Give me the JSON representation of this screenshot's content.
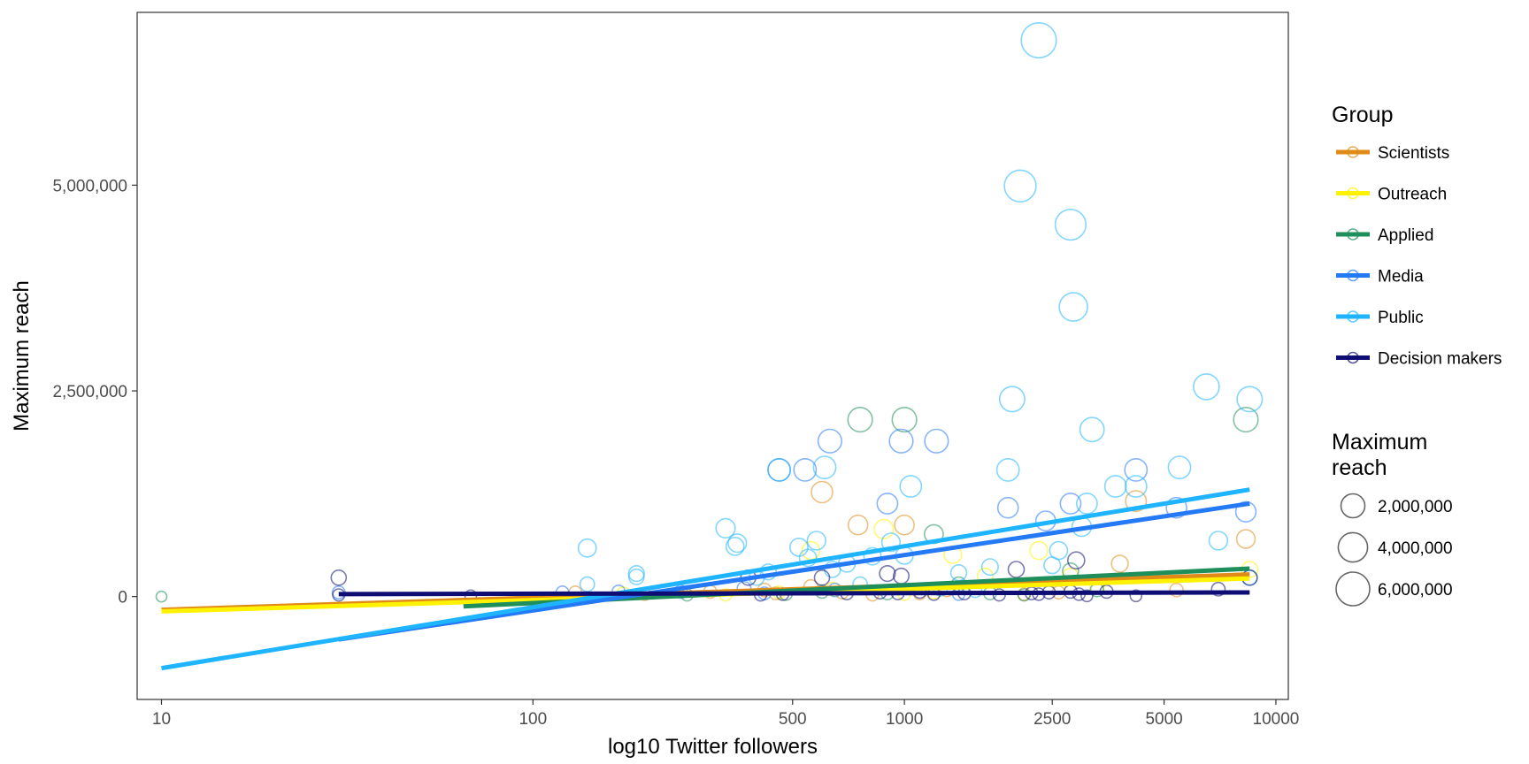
{
  "chart_data": {
    "type": "scatter",
    "xlabel": "log10 Twitter followers",
    "ylabel": "Maximum reach",
    "x_scale": "log10",
    "xlim": [
      8.6,
      10800
    ],
    "ylim": [
      -1250000,
      7100000
    ],
    "x_ticks": [
      {
        "value": 10,
        "label": "10"
      },
      {
        "value": 100,
        "label": "100"
      },
      {
        "value": 500,
        "label": "500"
      },
      {
        "value": 1000,
        "label": "1000"
      },
      {
        "value": 2500,
        "label": "2500"
      },
      {
        "value": 5000,
        "label": "5000"
      },
      {
        "value": 10000,
        "label": "10000"
      }
    ],
    "y_ticks": [
      {
        "value": 0,
        "label": "0"
      },
      {
        "value": 2500000,
        "label": "2,500,000"
      },
      {
        "value": 5000000,
        "label": "5,000,000"
      }
    ],
    "grid": false,
    "legend_placement": "right",
    "color_legend": {
      "title": "Group",
      "items": [
        {
          "label": "Scientists",
          "color": "#E08A17"
        },
        {
          "label": "Outreach",
          "color": "#FFF200"
        },
        {
          "label": "Applied",
          "color": "#1E8E5A"
        },
        {
          "label": "Media",
          "color": "#2479F5"
        },
        {
          "label": "Public",
          "color": "#1EB4FF"
        },
        {
          "label": "Decision makers",
          "color": "#0D0D73"
        }
      ]
    },
    "size_legend": {
      "title_lines": [
        "Maximum",
        "reach"
      ],
      "items": [
        {
          "value": 2000000,
          "label": "2,000,000"
        },
        {
          "value": 4000000,
          "label": "4,000,000"
        },
        {
          "value": 6000000,
          "label": "6,000,000"
        }
      ]
    },
    "series": [
      {
        "name": "Scientists",
        "color": "#E08A17",
        "trend": {
          "x": [
            10,
            8500
          ],
          "y": [
            -160000,
            270000
          ]
        },
        "points": [
          [
            130,
            50000
          ],
          [
            200,
            30000
          ],
          [
            300,
            60000
          ],
          [
            450,
            40000
          ],
          [
            560,
            120000
          ],
          [
            600,
            1270000
          ],
          [
            680,
            50000
          ],
          [
            750,
            870000
          ],
          [
            820,
            20000
          ],
          [
            1000,
            870000
          ],
          [
            1100,
            40000
          ],
          [
            1300,
            80000
          ],
          [
            2100,
            30000
          ],
          [
            2600,
            50000
          ],
          [
            3800,
            400000
          ],
          [
            4200,
            1160000
          ],
          [
            8300,
            700000
          ],
          [
            5400,
            80000
          ],
          [
            420,
            80000
          ]
        ]
      },
      {
        "name": "Outreach",
        "color": "#FFF200",
        "trend": {
          "x": [
            10,
            8500
          ],
          "y": [
            -180000,
            220000
          ]
        },
        "points": [
          [
            175,
            40000
          ],
          [
            330,
            20000
          ],
          [
            460,
            50000
          ],
          [
            560,
            560000
          ],
          [
            880,
            820000
          ],
          [
            1000,
            30000
          ],
          [
            1350,
            510000
          ],
          [
            1650,
            250000
          ],
          [
            2300,
            560000
          ],
          [
            2800,
            250000
          ],
          [
            3300,
            120000
          ],
          [
            8500,
            330000
          ],
          [
            640,
            90000
          ],
          [
            1200,
            50000
          ]
        ]
      },
      {
        "name": "Applied",
        "color": "#1E8E5A",
        "trend": {
          "x": [
            65,
            8500
          ],
          "y": [
            -120000,
            340000
          ]
        },
        "points": [
          [
            10,
            0
          ],
          [
            260,
            20000
          ],
          [
            480,
            30000
          ],
          [
            600,
            60000
          ],
          [
            760,
            2150000
          ],
          [
            1000,
            2150000
          ],
          [
            1200,
            760000
          ],
          [
            1700,
            40000
          ],
          [
            2100,
            20000
          ],
          [
            2800,
            310000
          ],
          [
            8300,
            2150000
          ],
          [
            3300,
            80000
          ],
          [
            1400,
            150000
          ],
          [
            900,
            40000
          ]
        ]
      },
      {
        "name": "Media",
        "color": "#2479F5",
        "trend": {
          "x": [
            30,
            8500
          ],
          "y": [
            -520000,
            1130000
          ]
        },
        "points": [
          [
            30,
            50000
          ],
          [
            120,
            50000
          ],
          [
            170,
            60000
          ],
          [
            250,
            60000
          ],
          [
            370,
            100000
          ],
          [
            420,
            40000
          ],
          [
            460,
            1540000
          ],
          [
            540,
            1540000
          ],
          [
            630,
            1890000
          ],
          [
            900,
            1130000
          ],
          [
            980,
            1890000
          ],
          [
            1220,
            1890000
          ],
          [
            1900,
            1080000
          ],
          [
            2400,
            920000
          ],
          [
            2800,
            1130000
          ],
          [
            4200,
            1540000
          ],
          [
            8300,
            1030000
          ],
          [
            5400,
            1080000
          ],
          [
            650,
            80000
          ],
          [
            1400,
            30000
          ]
        ]
      },
      {
        "name": "Public",
        "color": "#1EB4FF",
        "trend": {
          "x": [
            10,
            8500
          ],
          "y": [
            -870000,
            1300000
          ]
        },
        "points": [
          [
            140,
            150000
          ],
          [
            140,
            590000
          ],
          [
            190,
            280000
          ],
          [
            190,
            240000
          ],
          [
            330,
            830000
          ],
          [
            350,
            610000
          ],
          [
            355,
            650000
          ],
          [
            400,
            230000
          ],
          [
            430,
            300000
          ],
          [
            460,
            1540000
          ],
          [
            520,
            600000
          ],
          [
            550,
            470000
          ],
          [
            580,
            680000
          ],
          [
            610,
            1570000
          ],
          [
            640,
            330000
          ],
          [
            700,
            400000
          ],
          [
            820,
            490000
          ],
          [
            920,
            660000
          ],
          [
            1000,
            500000
          ],
          [
            1040,
            1340000
          ],
          [
            1400,
            290000
          ],
          [
            1550,
            70000
          ],
          [
            1700,
            360000
          ],
          [
            1900,
            1540000
          ],
          [
            1950,
            2400000
          ],
          [
            2050,
            4990000
          ],
          [
            2300,
            6760000
          ],
          [
            2500,
            380000
          ],
          [
            2800,
            4520000
          ],
          [
            2850,
            3520000
          ],
          [
            3000,
            850000
          ],
          [
            3100,
            1130000
          ],
          [
            3200,
            2030000
          ],
          [
            3700,
            1340000
          ],
          [
            4200,
            1340000
          ],
          [
            5500,
            1570000
          ],
          [
            6500,
            2550000
          ],
          [
            7000,
            680000
          ],
          [
            8500,
            2400000
          ],
          [
            8500,
            230000
          ],
          [
            2600,
            560000
          ],
          [
            1250,
            90000
          ],
          [
            760,
            150000
          ]
        ]
      },
      {
        "name": "Decision makers",
        "color": "#0D0D73",
        "trend": {
          "x": [
            30,
            8500
          ],
          "y": [
            30000,
            50000
          ]
        },
        "points": [
          [
            30,
            230000
          ],
          [
            30,
            20000
          ],
          [
            68,
            10000
          ],
          [
            380,
            230000
          ],
          [
            410,
            20000
          ],
          [
            470,
            30000
          ],
          [
            600,
            230000
          ],
          [
            700,
            40000
          ],
          [
            860,
            50000
          ],
          [
            960,
            40000
          ],
          [
            980,
            250000
          ],
          [
            1100,
            60000
          ],
          [
            1200,
            30000
          ],
          [
            1450,
            40000
          ],
          [
            1800,
            20000
          ],
          [
            2000,
            330000
          ],
          [
            2200,
            40000
          ],
          [
            2450,
            50000
          ],
          [
            2800,
            60000
          ],
          [
            2900,
            440000
          ],
          [
            2950,
            30000
          ],
          [
            3100,
            10000
          ],
          [
            3500,
            60000
          ],
          [
            4200,
            10000
          ],
          [
            7000,
            90000
          ],
          [
            8500,
            230000
          ],
          [
            900,
            280000
          ],
          [
            2300,
            30000
          ]
        ]
      }
    ]
  }
}
